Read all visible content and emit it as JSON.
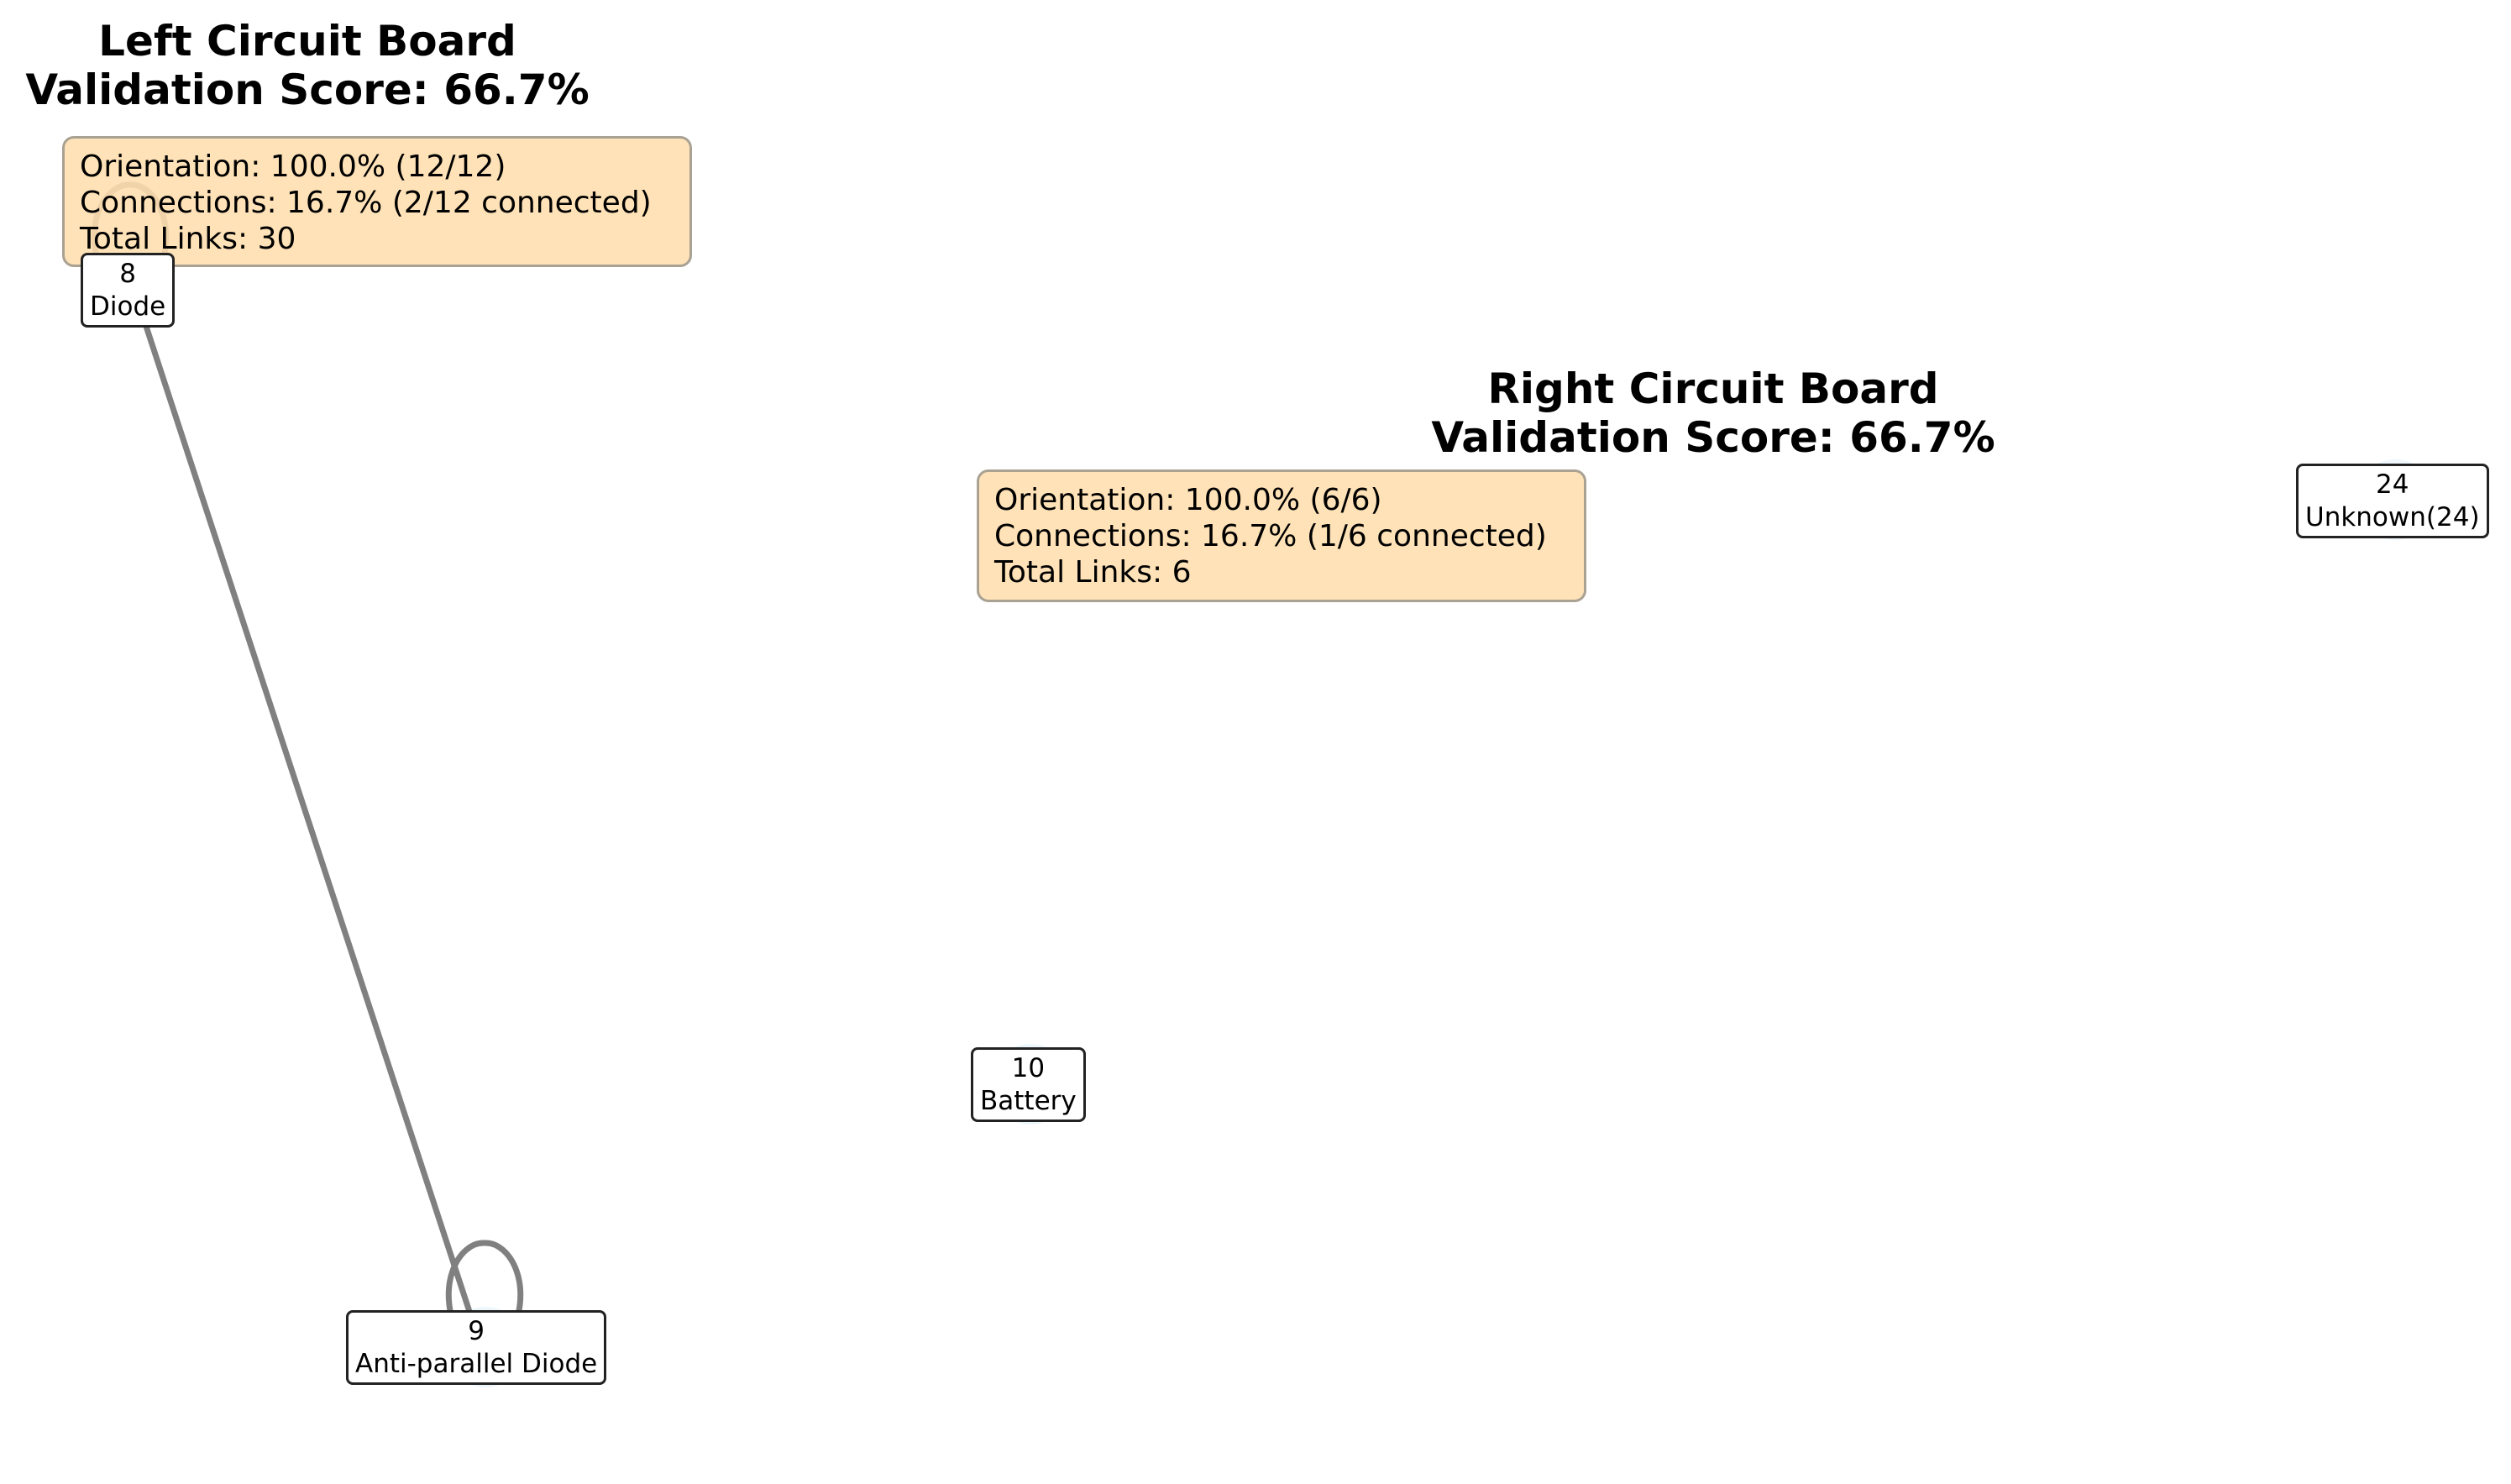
{
  "left_board": {
    "title_line1": "Left Circuit Board",
    "title_line2": "Validation Score: 66.7%",
    "info": {
      "orientation": "Orientation: 100.0% (12/12)",
      "connections": "Connections: 16.7% (2/12 connected)",
      "total_links": "Total Links: 30"
    },
    "nodes": [
      {
        "id": "8",
        "type": "Diode"
      },
      {
        "id": "9",
        "type": "Anti-parallel Diode"
      }
    ]
  },
  "right_board": {
    "title_line1": "Right Circuit Board",
    "title_line2": "Validation Score: 66.7%",
    "info": {
      "orientation": "Orientation: 100.0% (6/6)",
      "connections": "Connections: 16.7% (1/6 connected)",
      "total_links": "Total Links: 6"
    },
    "nodes": [
      {
        "id": "10",
        "type": "Battery"
      },
      {
        "id": "24",
        "type": "Unknown(24)"
      }
    ]
  },
  "colors": {
    "edge": "#808080",
    "info_box_fill": "#ffdead",
    "node_fill": "#eef7fc",
    "label_border": "#222222"
  },
  "edges": [
    {
      "from": "8",
      "to": "9",
      "kind": "link"
    },
    {
      "from": "8",
      "to": "8",
      "kind": "self-loop"
    },
    {
      "from": "9",
      "to": "9",
      "kind": "self-loop"
    }
  ]
}
